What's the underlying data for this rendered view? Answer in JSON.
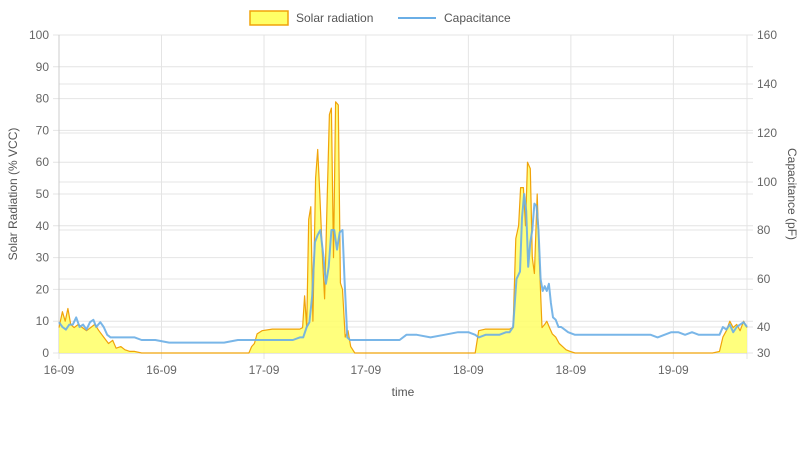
{
  "chart_data": {
    "type": "line",
    "xlabel": "time",
    "ylabel_left": "Solar Radiation (% VCC)",
    "ylabel_right": "Capacitance (pF)",
    "y_left_lim": [
      0,
      100
    ],
    "y_left_ticks": [
      0,
      10,
      20,
      30,
      40,
      50,
      60,
      70,
      80,
      90,
      100
    ],
    "y_right_ticks": [
      30,
      40,
      60,
      80,
      100,
      120,
      140,
      160
    ],
    "y_right_scale": "right axis 160 at top aligned with left 100; values 30 and 0 share baseline; linear between ticks",
    "x_range": [
      0,
      100
    ],
    "x_ticks": [
      {
        "x": 0,
        "label": "16-09"
      },
      {
        "x": 14.9,
        "label": "16-09"
      },
      {
        "x": 29.8,
        "label": "17-09"
      },
      {
        "x": 44.6,
        "label": "17-09"
      },
      {
        "x": 59.5,
        "label": "18-09"
      },
      {
        "x": 74.4,
        "label": "18-09"
      },
      {
        "x": 89.3,
        "label": "19-09"
      }
    ],
    "grid": true,
    "legend_position": "top",
    "series": [
      {
        "name": "Solar radiation",
        "axis": "left",
        "fill": true,
        "line_color": "#f0a30a",
        "fill_color": "#ffff66",
        "points": [
          [
            0,
            8
          ],
          [
            0.5,
            13
          ],
          [
            0.9,
            10
          ],
          [
            1.3,
            14
          ],
          [
            1.7,
            9
          ],
          [
            2.2,
            8
          ],
          [
            2.8,
            9
          ],
          [
            3.4,
            8
          ],
          [
            4.0,
            7
          ],
          [
            4.6,
            8
          ],
          [
            5.2,
            9
          ],
          [
            5.8,
            7
          ],
          [
            6.5,
            5
          ],
          [
            7.2,
            3
          ],
          [
            7.8,
            4
          ],
          [
            8.3,
            1.5
          ],
          [
            9.0,
            2
          ],
          [
            9.6,
            1
          ],
          [
            10.3,
            0.5
          ],
          [
            11.0,
            0.5
          ],
          [
            12.0,
            0
          ],
          [
            15,
            0
          ],
          [
            20,
            0
          ],
          [
            25,
            0
          ],
          [
            27.6,
            0
          ],
          [
            28.0,
            2
          ],
          [
            28.4,
            3
          ],
          [
            28.8,
            6
          ],
          [
            29.5,
            7
          ],
          [
            31,
            7.5
          ],
          [
            33,
            7.5
          ],
          [
            35,
            7.5
          ],
          [
            35.4,
            8
          ],
          [
            35.7,
            18
          ],
          [
            36.0,
            8
          ],
          [
            36.3,
            42
          ],
          [
            36.6,
            46
          ],
          [
            36.9,
            10
          ],
          [
            37.3,
            55
          ],
          [
            37.6,
            64
          ],
          [
            37.9,
            50
          ],
          [
            38.3,
            30
          ],
          [
            38.6,
            17
          ],
          [
            39.0,
            50
          ],
          [
            39.3,
            75
          ],
          [
            39.6,
            77
          ],
          [
            39.9,
            30
          ],
          [
            40.2,
            79
          ],
          [
            40.6,
            78
          ],
          [
            40.9,
            22
          ],
          [
            41.2,
            20
          ],
          [
            41.6,
            5
          ],
          [
            42.0,
            7
          ],
          [
            42.4,
            2
          ],
          [
            43.0,
            0
          ],
          [
            45,
            0
          ],
          [
            50,
            0
          ],
          [
            55,
            0
          ],
          [
            59.5,
            0
          ],
          [
            60.5,
            0
          ],
          [
            61.0,
            7
          ],
          [
            62,
            7.5
          ],
          [
            64,
            7.5
          ],
          [
            65.5,
            7.5
          ],
          [
            66.0,
            8
          ],
          [
            66.4,
            36
          ],
          [
            66.8,
            40
          ],
          [
            67.1,
            52
          ],
          [
            67.5,
            52
          ],
          [
            67.8,
            40
          ],
          [
            68.1,
            60
          ],
          [
            68.5,
            58
          ],
          [
            68.8,
            30
          ],
          [
            69.1,
            25
          ],
          [
            69.5,
            50
          ],
          [
            69.8,
            30
          ],
          [
            70.2,
            8
          ],
          [
            70.6,
            9
          ],
          [
            70.9,
            10
          ],
          [
            71.3,
            8
          ],
          [
            71.7,
            6
          ],
          [
            72.2,
            5
          ],
          [
            72.7,
            3
          ],
          [
            73.2,
            2
          ],
          [
            73.7,
            1
          ],
          [
            74.3,
            0.5
          ],
          [
            75.0,
            0
          ],
          [
            80,
            0
          ],
          [
            85,
            0
          ],
          [
            90,
            0
          ],
          [
            95,
            0
          ],
          [
            96.0,
            0.5
          ],
          [
            96.5,
            5
          ],
          [
            97.0,
            7
          ],
          [
            97.5,
            10
          ],
          [
            98.0,
            8
          ],
          [
            98.5,
            9
          ],
          [
            99.0,
            7
          ],
          [
            99.5,
            10
          ],
          [
            100,
            8
          ]
        ]
      },
      {
        "name": "Capacitance",
        "axis": "right",
        "fill": false,
        "line_color": "#6aaee6",
        "points": [
          [
            0,
            42
          ],
          [
            0.5,
            40
          ],
          [
            1.0,
            39
          ],
          [
            1.5,
            41
          ],
          [
            2.0,
            41
          ],
          [
            2.5,
            44
          ],
          [
            3.0,
            40
          ],
          [
            3.5,
            41
          ],
          [
            4.0,
            39
          ],
          [
            4.5,
            42
          ],
          [
            5.0,
            43
          ],
          [
            5.4,
            40
          ],
          [
            6.0,
            42
          ],
          [
            6.5,
            40
          ],
          [
            7.0,
            37
          ],
          [
            7.5,
            36
          ],
          [
            8.0,
            36
          ],
          [
            9.0,
            36
          ],
          [
            10.0,
            36
          ],
          [
            11.0,
            36
          ],
          [
            12.0,
            35
          ],
          [
            13.0,
            35
          ],
          [
            14.0,
            35
          ],
          [
            16,
            34
          ],
          [
            18,
            34
          ],
          [
            20,
            34
          ],
          [
            22,
            34
          ],
          [
            24,
            34
          ],
          [
            26,
            35
          ],
          [
            28,
            35
          ],
          [
            30,
            35
          ],
          [
            31,
            35
          ],
          [
            32,
            35
          ],
          [
            33,
            35
          ],
          [
            34,
            35
          ],
          [
            35,
            36
          ],
          [
            35.5,
            36
          ],
          [
            36.0,
            40
          ],
          [
            36.4,
            42
          ],
          [
            36.8,
            53
          ],
          [
            37.2,
            75
          ],
          [
            37.6,
            78
          ],
          [
            38.0,
            80
          ],
          [
            38.4,
            70
          ],
          [
            38.8,
            58
          ],
          [
            39.2,
            65
          ],
          [
            39.6,
            80
          ],
          [
            40.0,
            80
          ],
          [
            40.4,
            72
          ],
          [
            40.8,
            79
          ],
          [
            41.2,
            80
          ],
          [
            41.5,
            60
          ],
          [
            41.9,
            36
          ],
          [
            42.3,
            35
          ],
          [
            42.7,
            35
          ],
          [
            44,
            35
          ],
          [
            46,
            35
          ],
          [
            48,
            35
          ],
          [
            49.5,
            35
          ],
          [
            50.5,
            37
          ],
          [
            52,
            37
          ],
          [
            54,
            36
          ],
          [
            56,
            37
          ],
          [
            58,
            38
          ],
          [
            59.5,
            38
          ],
          [
            60.5,
            37
          ],
          [
            61,
            36
          ],
          [
            62,
            37
          ],
          [
            63,
            37
          ],
          [
            64,
            37
          ],
          [
            65,
            38
          ],
          [
            65.5,
            38
          ],
          [
            66.0,
            40
          ],
          [
            66.5,
            60
          ],
          [
            67.0,
            63
          ],
          [
            67.3,
            85
          ],
          [
            67.6,
            95
          ],
          [
            67.9,
            88
          ],
          [
            68.2,
            65
          ],
          [
            68.5,
            75
          ],
          [
            68.8,
            80
          ],
          [
            69.1,
            91
          ],
          [
            69.4,
            90
          ],
          [
            69.7,
            80
          ],
          [
            70.0,
            60
          ],
          [
            70.3,
            55
          ],
          [
            70.6,
            57
          ],
          [
            70.9,
            55
          ],
          [
            71.2,
            58
          ],
          [
            71.5,
            50
          ],
          [
            71.8,
            44
          ],
          [
            72.2,
            43
          ],
          [
            72.6,
            40
          ],
          [
            73.0,
            40
          ],
          [
            74,
            38
          ],
          [
            75,
            37
          ],
          [
            77,
            37
          ],
          [
            79,
            37
          ],
          [
            81,
            37
          ],
          [
            83,
            37
          ],
          [
            84.5,
            37
          ],
          [
            86,
            37
          ],
          [
            87,
            36
          ],
          [
            88,
            37
          ],
          [
            89,
            38
          ],
          [
            90,
            38
          ],
          [
            91,
            37
          ],
          [
            92,
            38
          ],
          [
            93,
            37
          ],
          [
            94,
            37
          ],
          [
            95,
            37
          ],
          [
            96,
            37
          ],
          [
            96.5,
            40
          ],
          [
            97.0,
            39
          ],
          [
            97.5,
            41
          ],
          [
            98.0,
            38
          ],
          [
            98.5,
            40
          ],
          [
            99.0,
            41
          ],
          [
            99.5,
            42
          ],
          [
            100,
            40
          ]
        ]
      }
    ]
  }
}
